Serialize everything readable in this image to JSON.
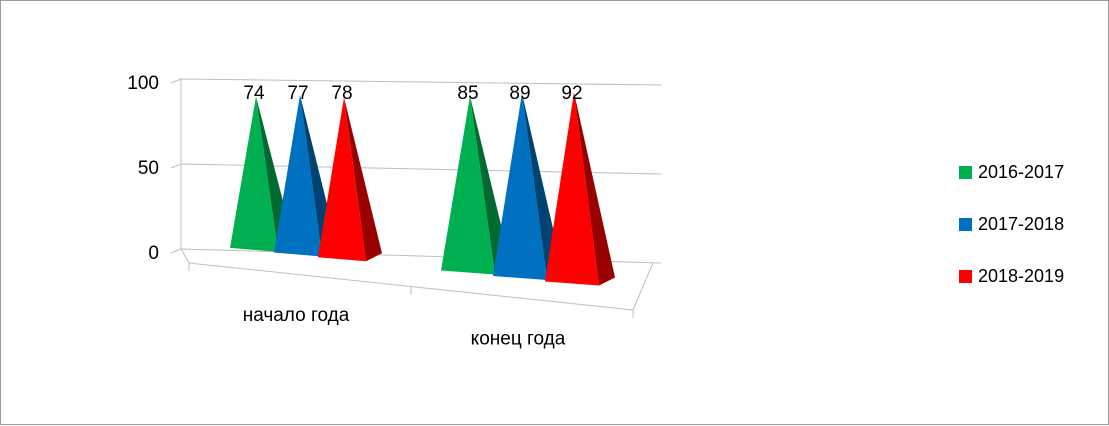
{
  "chart_data": {
    "type": "bar",
    "bar_shape": "pyramid-3d",
    "categories": [
      "начало года",
      "конец года"
    ],
    "series": [
      {
        "name": "2016-2017",
        "values": [
          74,
          85
        ],
        "color": "#00b050"
      },
      {
        "name": "2017-2018",
        "values": [
          77,
          89
        ],
        "color": "#0070c0"
      },
      {
        "name": "2018-2019",
        "values": [
          78,
          92
        ],
        "color": "#ff0000"
      }
    ],
    "ylim": [
      0,
      100
    ],
    "yticks": [
      "0",
      "50",
      "100"
    ],
    "data_labels": true,
    "grid": true,
    "legend_position": "right"
  }
}
